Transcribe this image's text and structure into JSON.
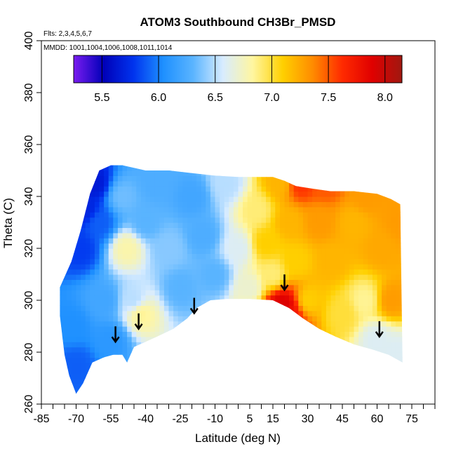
{
  "chart_data": {
    "type": "heatmap",
    "title": "ATOM3 Southbound CH3Br_PMSD",
    "subtitle_flights": "Flts: 2,3,4,5,6,7",
    "subtitle_dates": "MMDD: 1001,1004,1006,1008,1011,1014",
    "xlabel": "Latitude (deg N)",
    "ylabel": "Theta (C)",
    "xlim": [
      -85,
      85
    ],
    "ylim": [
      260,
      400
    ],
    "x_ticks": [
      -85,
      -70,
      -55,
      -40,
      -25,
      -10,
      5,
      15,
      30,
      45,
      60,
      75
    ],
    "x_tick_labels": [
      "-85",
      "-70",
      "-55",
      "-40",
      "-25",
      "-10",
      "5",
      "15",
      "30",
      "45",
      "60",
      "75"
    ],
    "x_minor_step": 5,
    "y_ticks": [
      260,
      280,
      300,
      320,
      340,
      360,
      380,
      400
    ],
    "y_tick_labels": [
      "260",
      "280",
      "300",
      "320",
      "340",
      "360",
      "380",
      "400"
    ],
    "colorbar": {
      "min": 5.25,
      "max": 8.15,
      "ticks": [
        5.5,
        6.0,
        6.5,
        7.0,
        7.5,
        8.0
      ],
      "tick_labels": [
        "5.5",
        "6.0",
        "6.5",
        "7.0",
        "7.5",
        "8.0"
      ],
      "colors": [
        "#7a1cf0",
        "#0000b8",
        "#0033ee",
        "#1e90ff",
        "#5ab4ff",
        "#d8ecff",
        "#fff6a0",
        "#ffd000",
        "#ff8c00",
        "#ff2a00",
        "#e00000",
        "#a01810"
      ]
    },
    "arrows_latitude": [
      -53,
      -43,
      -19,
      20,
      61
    ],
    "arrows_theta": [
      284,
      289,
      295,
      304,
      286
    ],
    "domain_bottom": [
      [
        -77,
        294
      ],
      [
        -75,
        279
      ],
      [
        -73,
        271
      ],
      [
        -70,
        264
      ],
      [
        -67,
        268
      ],
      [
        -63,
        276
      ],
      [
        -58,
        278
      ],
      [
        -54,
        279
      ],
      [
        -50,
        279
      ],
      [
        -48,
        276
      ],
      [
        -45,
        282
      ],
      [
        -40,
        284
      ],
      [
        -35,
        286
      ],
      [
        -28,
        289
      ],
      [
        -22,
        293
      ],
      [
        -18,
        297
      ],
      [
        -12,
        300
      ],
      [
        -5,
        300.5
      ],
      [
        5,
        300.5
      ],
      [
        15,
        300
      ],
      [
        22,
        297
      ],
      [
        28,
        293
      ],
      [
        35,
        289
      ],
      [
        42,
        286
      ],
      [
        50,
        283
      ],
      [
        58,
        281
      ],
      [
        65,
        279
      ],
      [
        71,
        276
      ]
    ],
    "domain_top": [
      [
        -77,
        305
      ],
      [
        -72,
        315
      ],
      [
        -68,
        327
      ],
      [
        -64,
        341
      ],
      [
        -60,
        350
      ],
      [
        -55,
        352
      ],
      [
        -50,
        352
      ],
      [
        -45,
        351
      ],
      [
        -40,
        350
      ],
      [
        -30,
        350
      ],
      [
        -20,
        349
      ],
      [
        -10,
        348
      ],
      [
        0,
        347.5
      ],
      [
        10,
        347.5
      ],
      [
        15,
        347.5
      ],
      [
        20,
        346
      ],
      [
        25,
        344
      ],
      [
        32,
        343
      ],
      [
        40,
        342
      ],
      [
        50,
        342
      ],
      [
        60,
        341
      ],
      [
        66,
        339
      ],
      [
        70,
        337
      ],
      [
        71,
        276
      ]
    ],
    "field_anchors": [
      [
        -72,
        290,
        6.05
      ],
      [
        -70,
        275,
        5.9
      ],
      [
        -68,
        320,
        5.8
      ],
      [
        -66,
        335,
        5.7
      ],
      [
        -62,
        345,
        5.65
      ],
      [
        -60,
        330,
        5.9
      ],
      [
        -58,
        300,
        6.2
      ],
      [
        -55,
        285,
        6.1
      ],
      [
        -50,
        340,
        6.35
      ],
      [
        -48,
        320,
        6.8
      ],
      [
        -45,
        300,
        6.5
      ],
      [
        -42,
        295,
        6.85
      ],
      [
        -40,
        330,
        6.3
      ],
      [
        -35,
        345,
        6.25
      ],
      [
        -30,
        320,
        6.4
      ],
      [
        -25,
        305,
        6.3
      ],
      [
        -20,
        340,
        6.2
      ],
      [
        -15,
        325,
        6.25
      ],
      [
        -10,
        310,
        6.3
      ],
      [
        -5,
        345,
        6.5
      ],
      [
        0,
        320,
        6.6
      ],
      [
        5,
        305,
        6.7
      ],
      [
        8,
        335,
        6.9
      ],
      [
        12,
        322,
        7.1
      ],
      [
        15,
        310,
        6.9
      ],
      [
        18,
        345,
        7.2
      ],
      [
        22,
        330,
        7.2
      ],
      [
        25,
        315,
        7.1
      ],
      [
        27,
        345,
        7.6
      ],
      [
        30,
        300,
        7.1
      ],
      [
        35,
        330,
        7.3
      ],
      [
        38,
        345,
        7.5
      ],
      [
        40,
        315,
        7.2
      ],
      [
        45,
        295,
        7.0
      ],
      [
        50,
        330,
        7.2
      ],
      [
        55,
        340,
        7.3
      ],
      [
        55,
        300,
        6.85
      ],
      [
        60,
        285,
        6.6
      ],
      [
        62,
        320,
        7.25
      ],
      [
        66,
        300,
        7.3
      ],
      [
        68,
        280,
        6.6
      ],
      [
        70,
        330,
        7.3
      ],
      [
        19,
        298,
        7.9
      ],
      [
        20,
        296.5,
        8.0
      ],
      [
        22,
        295,
        7.7
      ]
    ]
  }
}
